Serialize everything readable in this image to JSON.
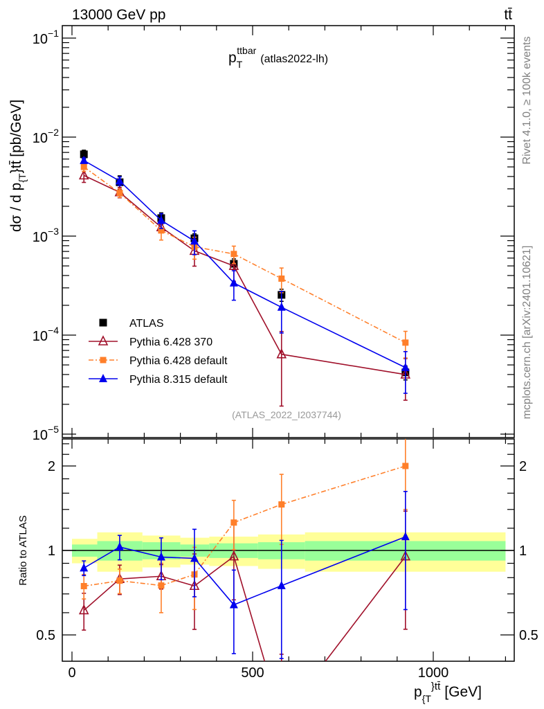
{
  "header": {
    "left": "13000 GeV pp",
    "right": "tt̄",
    "side_top": "Rivet 4.1.0, ≥ 100k events",
    "side_bottom": "mcplots.cern.ch [arXiv:2401.10621]"
  },
  "chart_data": {
    "type": "scatter",
    "title_main": "p",
    "title_sub": "T",
    "title_sup": "ttbar",
    "title_suffix": "(atlas2022-lh)",
    "analysis_label": "(ATLAS_2022_I2037744)",
    "ylabel_main": "dσ / d p",
    "ylabel_sub": "{T",
    "ylabel_sup": "}tt̄",
    "ylabel_unit": "[pb/GeV]",
    "xlabel_main": "p",
    "xlabel_sub": "{T",
    "xlabel_sup": "}tt̄",
    "xlabel_unit": "[GeV]",
    "ratio_ylabel": "Ratio to ATLAS",
    "xlim": [
      -27,
      1224
    ],
    "ylim": [
      1e-05,
      0.134
    ],
    "yscale": "log",
    "ratio_ylim": [
      0.4,
      2.5
    ],
    "ratio_yscale": "log",
    "x_ticks": [
      0,
      500,
      1000
    ],
    "x_tick_labels": [
      "0",
      "500",
      "1000"
    ],
    "y_tick_labels": [
      {
        "base": "10",
        "exp": "−1",
        "v": 0.1
      },
      {
        "base": "10",
        "exp": "−2",
        "v": 0.01
      },
      {
        "base": "10",
        "exp": "−3",
        "v": 0.001
      },
      {
        "base": "10",
        "exp": "−4",
        "v": 0.0001
      },
      {
        "base": "10",
        "exp": "−5",
        "v": 1e-05
      }
    ],
    "ratio_ticks": [
      0.5,
      1,
      2
    ],
    "ratio_tick_labels": [
      "0.5",
      "1",
      "2"
    ],
    "bins": [
      [
        0,
        70
      ],
      [
        70,
        195
      ],
      [
        195,
        300
      ],
      [
        300,
        380
      ],
      [
        380,
        515
      ],
      [
        515,
        645
      ],
      [
        645,
        1200
      ]
    ],
    "x": [
      33,
      132,
      247,
      339,
      448,
      580,
      923
    ],
    "data": {
      "name": "ATLAS",
      "values": [
        0.0067,
        0.0035,
        0.00152,
        0.00095,
        0.000525,
        0.000255,
        4.2e-05
      ],
      "stat_rel": [
        0.05,
        0.08,
        0.07,
        0.05,
        0.06,
        0.07,
        0.08
      ],
      "total_rel": [
        0.1,
        0.16,
        0.13,
        0.11,
        0.12,
        0.14,
        0.16
      ],
      "color": "#000000"
    },
    "series": [
      {
        "name": "Pythia 6.428 370",
        "color": "#a0102a",
        "marker": "open-triangle",
        "line": "solid",
        "values": [
          0.0041,
          0.00277,
          0.00123,
          0.00071,
          0.0005,
          6.4e-05,
          4e-05
        ],
        "err_rel": [
          0.15,
          0.12,
          0.1,
          0.3,
          0.3,
          0.7,
          0.45
        ]
      },
      {
        "name": "Pythia 6.428 default",
        "color": "#ff7f2a",
        "marker": "square",
        "line": "dashdot",
        "values": [
          0.005,
          0.00273,
          0.00114,
          0.00078,
          0.00066,
          0.000372,
          8.4e-05
        ],
        "err_rel": [
          0.1,
          0.1,
          0.2,
          0.25,
          0.2,
          0.28,
          0.3
        ]
      },
      {
        "name": "Pythia 8.315 default",
        "color": "#0000ee",
        "marker": "triangle",
        "line": "solid",
        "values": [
          0.0058,
          0.0036,
          0.00144,
          0.00089,
          0.000336,
          0.000191,
          4.7e-05
        ],
        "err_rel": [
          0.06,
          0.1,
          0.17,
          0.27,
          0.33,
          0.45,
          0.45
        ]
      }
    ],
    "band_colors": {
      "stat": "#99ff99",
      "total": "#ffff99"
    },
    "legend_position": "bottom-left"
  }
}
